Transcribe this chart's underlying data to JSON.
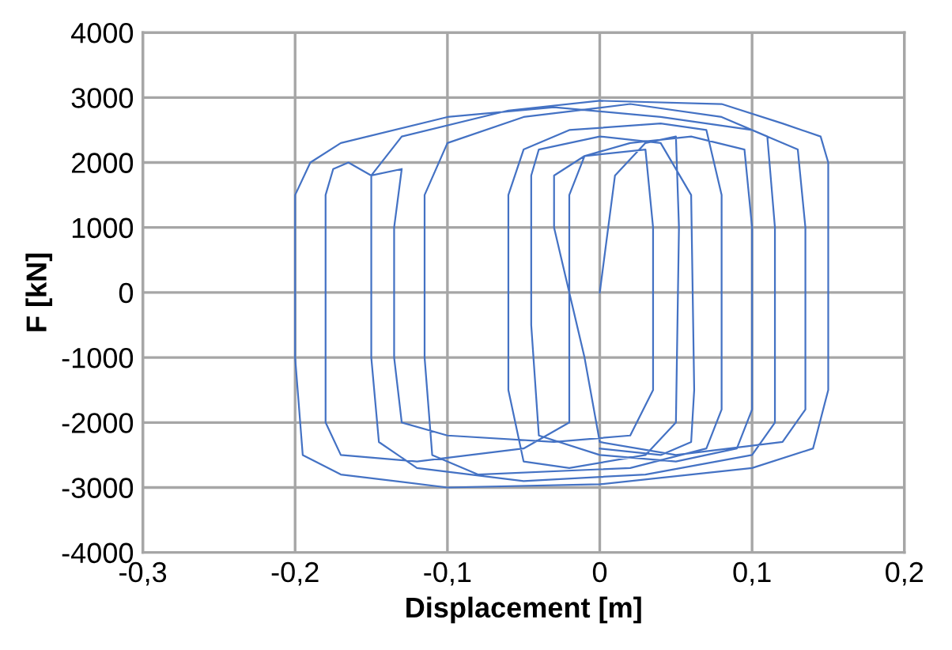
{
  "chart_data": {
    "type": "line",
    "xlabel": "Displacement [m]",
    "ylabel": "F [kN]",
    "grid": true,
    "legend": false,
    "marker": "none",
    "line_style": "solid",
    "xlim": [
      -0.3,
      0.2
    ],
    "ylim": [
      -4000,
      4000
    ],
    "xticks": [
      {
        "value": -0.3,
        "label": "-0,3"
      },
      {
        "value": -0.2,
        "label": "-0,2"
      },
      {
        "value": -0.1,
        "label": "-0,1"
      },
      0,
      {
        "value": 0.1,
        "label": "0,1"
      },
      {
        "value": 0.2,
        "label": "0,2"
      }
    ],
    "yticks": [
      -4000,
      -3000,
      -2000,
      -1000,
      0,
      1000,
      2000,
      3000,
      4000
    ],
    "series": [
      {
        "color": "#4472c4",
        "x": [
          0,
          0.01,
          0.03,
          0.05,
          0.052,
          0.05,
          0.03,
          -0.02,
          -0.05,
          -0.06,
          -0.06,
          -0.05,
          -0.02,
          0.04,
          0.07,
          0.08,
          0.08,
          0.07,
          0.02,
          -0.08,
          -0.11,
          -0.115,
          -0.115,
          -0.1,
          -0.05,
          0.02,
          0.08,
          0.11,
          0.115,
          0.115,
          0.1,
          0.03,
          -0.05,
          -0.12,
          -0.145,
          -0.15,
          -0.15,
          -0.13,
          -0.06,
          0.0,
          0.08,
          0.12,
          0.145,
          0.15,
          0.15,
          0.14,
          0.1,
          0.0,
          -0.1,
          -0.17,
          -0.195,
          -0.2,
          -0.2,
          -0.19,
          -0.17,
          -0.1,
          -0.03,
          0.04,
          0.1,
          0.13,
          0.135,
          0.135,
          0.12,
          0.05,
          0.0,
          -0.01,
          -0.02,
          -0.03,
          -0.03,
          -0.01,
          0.03,
          0.035,
          0.035,
          0.02,
          -0.03,
          -0.1,
          -0.13,
          -0.135,
          -0.135,
          -0.13,
          -0.15,
          -0.165,
          -0.175,
          -0.18,
          -0.18,
          -0.17,
          -0.12,
          -0.05,
          -0.02,
          -0.02,
          -0.01,
          0.02,
          0.06,
          0.095,
          0.1,
          0.1,
          0.09,
          0.05,
          0.0,
          -0.04,
          -0.045,
          -0.045,
          -0.04,
          0.0,
          0.04,
          0.06,
          0.062,
          0.06,
          0.04,
          0.0
        ],
        "values": [
          0,
          1800,
          2300,
          2400,
          1000,
          -2000,
          -2500,
          -2700,
          -2600,
          -1500,
          1500,
          2200,
          2500,
          2600,
          2500,
          1500,
          -1800,
          -2400,
          -2700,
          -2800,
          -2500,
          -1000,
          1500,
          2300,
          2700,
          2900,
          2700,
          2400,
          1000,
          -2000,
          -2500,
          -2800,
          -2900,
          -2700,
          -2300,
          -1000,
          1800,
          2400,
          2800,
          2950,
          2900,
          2600,
          2400,
          2000,
          -1500,
          -2400,
          -2700,
          -2950,
          -3000,
          -2800,
          -2500,
          -1000,
          1500,
          2000,
          2300,
          2700,
          2850,
          2700,
          2500,
          2200,
          1000,
          -1800,
          -2300,
          -2500,
          -2300,
          -1000,
          0,
          1000,
          1800,
          2100,
          2200,
          1000,
          -1500,
          -2200,
          -2300,
          -2200,
          -2000,
          -1000,
          1000,
          1900,
          1800,
          2000,
          1900,
          1500,
          -2000,
          -2500,
          -2600,
          -2400,
          -2000,
          1500,
          2100,
          2300,
          2400,
          2200,
          1000,
          -1800,
          -2400,
          -2600,
          -2500,
          -2200,
          -500,
          1800,
          2200,
          2400,
          2300,
          1500,
          -1500,
          -2300,
          -2500,
          -2400
        ]
      }
    ]
  }
}
